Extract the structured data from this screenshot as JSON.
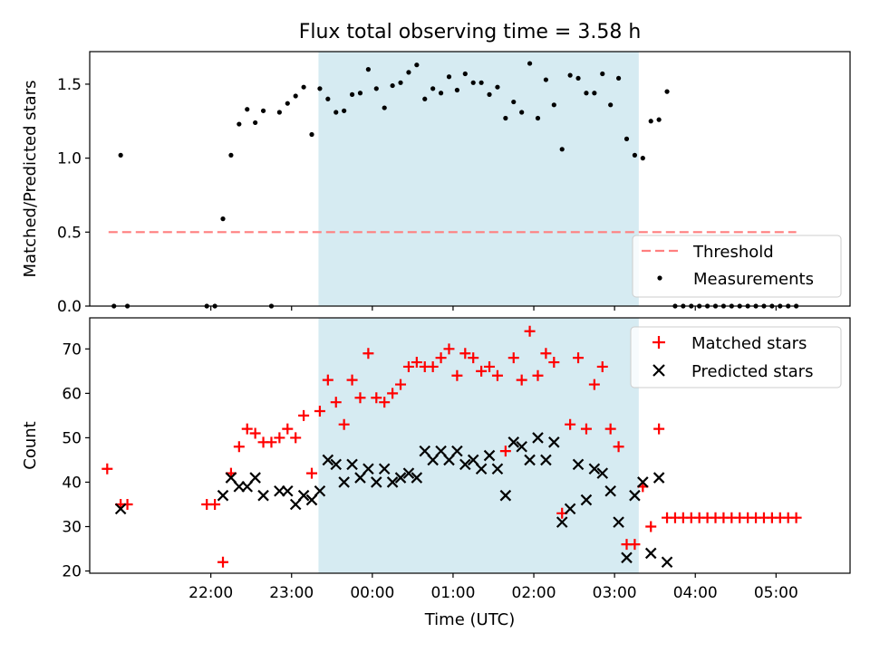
{
  "title": "Flux total observing time = 3.58 h",
  "highlight_color": "#add8e6",
  "chart_data": [
    {
      "type": "scatter",
      "panel": "top",
      "xlabel": "",
      "ylabel": "Matched/Predicted stars",
      "xlim": [
        -150,
        415
      ],
      "ylim": [
        0,
        1.72
      ],
      "yticks": [
        0.0,
        0.5,
        1.0,
        1.5
      ],
      "ytick_labels": [
        "0.0",
        "0.5",
        "1.0",
        "1.5"
      ],
      "grid": false,
      "legend_position": "lower-right",
      "legend": {
        "threshold": "Threshold",
        "measurements": "Measurements"
      },
      "shaded_interval": [
        20,
        258
      ],
      "threshold": {
        "name": "Threshold",
        "y": 0.5,
        "x": [
          -136,
          375
        ],
        "color": "#ff7f7f"
      },
      "series": [
        {
          "name": "Measurements",
          "color": "#000000",
          "x": [
            -132,
            -127,
            -122,
            -63,
            -57,
            -51,
            -45,
            -39,
            -33,
            -27,
            -21,
            -15,
            -9,
            -3,
            3,
            9,
            15,
            21,
            27,
            33,
            39,
            45,
            51,
            57,
            63,
            69,
            75,
            81,
            87,
            93,
            99,
            105,
            111,
            117,
            123,
            129,
            135,
            141,
            147,
            153,
            159,
            165,
            171,
            177,
            183,
            189,
            195,
            201,
            207,
            213,
            219,
            225,
            231,
            237,
            243,
            249,
            255,
            261,
            267,
            273,
            279,
            285,
            291,
            297,
            303,
            309,
            315,
            321,
            327,
            333,
            339,
            345,
            351,
            357,
            363,
            369,
            375
          ],
          "y": [
            0.0,
            1.02,
            0.0,
            0.0,
            0.0,
            0.59,
            1.02,
            1.23,
            1.33,
            1.24,
            1.32,
            0.0,
            1.31,
            1.37,
            1.42,
            1.48,
            1.16,
            1.47,
            1.4,
            1.31,
            1.32,
            1.43,
            1.44,
            1.6,
            1.47,
            1.34,
            1.49,
            1.51,
            1.58,
            1.63,
            1.4,
            1.47,
            1.44,
            1.55,
            1.46,
            1.57,
            1.51,
            1.51,
            1.43,
            1.48,
            1.27,
            1.38,
            1.31,
            1.64,
            1.27,
            1.53,
            1.36,
            1.06,
            1.56,
            1.54,
            1.44,
            1.44,
            1.57,
            1.36,
            1.54,
            1.13,
            1.02,
            1.0,
            1.25,
            1.26,
            1.45,
            0.0,
            0.0,
            0.0,
            0.0,
            0.0,
            0.0,
            0.0,
            0.0,
            0.0,
            0.0,
            0.0,
            0.0,
            0.0,
            0.0,
            0.0,
            0.0
          ]
        }
      ]
    },
    {
      "type": "scatter",
      "panel": "bottom",
      "xlabel": "Time (UTC)",
      "ylabel": "Count",
      "xlim": [
        -150,
        415
      ],
      "ylim": [
        19.5,
        77
      ],
      "yticks": [
        20,
        30,
        40,
        50,
        60,
        70
      ],
      "ytick_labels": [
        "20",
        "30",
        "40",
        "50",
        "60",
        "70"
      ],
      "xticks": [
        -60,
        0,
        60,
        120,
        180,
        240,
        300,
        360
      ],
      "xtick_labels": [
        "22:00",
        "23:00",
        "00:00",
        "01:00",
        "02:00",
        "03:00",
        "04:00",
        "05:00"
      ],
      "grid": false,
      "legend_position": "upper-right",
      "legend": {
        "matched": "Matched stars",
        "predicted": "Predicted stars"
      },
      "shaded_interval": [
        20,
        258
      ],
      "series": [
        {
          "name": "Matched stars",
          "color": "#ff0000",
          "marker": "+",
          "x": [
            -137,
            -127,
            -122,
            -63,
            -57,
            -51,
            -45,
            -39,
            -33,
            -27,
            -21,
            -15,
            -9,
            -3,
            3,
            9,
            15,
            21,
            27,
            33,
            39,
            45,
            51,
            57,
            63,
            69,
            75,
            81,
            87,
            93,
            99,
            105,
            111,
            117,
            123,
            129,
            135,
            141,
            147,
            153,
            159,
            165,
            171,
            177,
            183,
            189,
            195,
            201,
            207,
            213,
            219,
            225,
            231,
            237,
            243,
            249,
            255,
            261,
            267,
            273,
            279,
            285,
            291,
            297,
            303,
            309,
            315,
            321,
            327,
            333,
            339,
            345,
            351,
            357,
            363,
            369,
            375
          ],
          "y": [
            43,
            35,
            35,
            35,
            35,
            22,
            42,
            48,
            52,
            51,
            49,
            49,
            50,
            52,
            50,
            55,
            42,
            56,
            63,
            58,
            53,
            63,
            59,
            69,
            59,
            58,
            60,
            62,
            66,
            67,
            66,
            66,
            68,
            70,
            64,
            69,
            68,
            65,
            66,
            64,
            47,
            68,
            63,
            74,
            64,
            69,
            67,
            33,
            53,
            68,
            52,
            62,
            66,
            52,
            48,
            26,
            26,
            39,
            30,
            52,
            32,
            32,
            32,
            32,
            32,
            32,
            32,
            32,
            32,
            32,
            32,
            32,
            32,
            32,
            32,
            32,
            32
          ]
        },
        {
          "name": "Predicted stars",
          "color": "#000000",
          "marker": "x",
          "x": [
            -127,
            -51,
            -45,
            -39,
            -33,
            -27,
            -21,
            -9,
            -3,
            3,
            9,
            15,
            21,
            27,
            33,
            39,
            45,
            51,
            57,
            63,
            69,
            75,
            81,
            87,
            93,
            99,
            105,
            111,
            117,
            123,
            129,
            135,
            141,
            147,
            153,
            159,
            165,
            171,
            177,
            183,
            189,
            195,
            201,
            207,
            213,
            219,
            225,
            231,
            237,
            243,
            249,
            255,
            261,
            267,
            273,
            279
          ],
          "y": [
            34,
            37,
            41,
            39,
            39,
            41,
            37,
            38,
            38,
            35,
            37,
            36,
            38,
            45,
            44,
            40,
            44,
            41,
            43,
            40,
            43,
            40,
            41,
            42,
            41,
            47,
            45,
            47,
            45,
            47,
            44,
            45,
            43,
            46,
            43,
            37,
            49,
            48,
            45,
            50,
            45,
            49,
            31,
            34,
            44,
            36,
            43,
            42,
            38,
            31,
            23,
            37,
            40,
            24,
            41,
            22
          ]
        }
      ]
    }
  ]
}
